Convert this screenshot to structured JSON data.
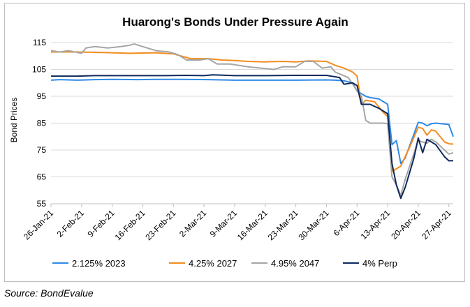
{
  "source": "Source: BondEvalue",
  "chart_data": {
    "type": "line",
    "title": "Huarong's Bonds Under Pressure Again",
    "xlabel": "",
    "ylabel": "Bond Prices",
    "ylim": [
      55,
      115
    ],
    "yticks": [
      55,
      65,
      75,
      85,
      95,
      105,
      115
    ],
    "xlim": [
      "2021-01-26",
      "2021-04-28"
    ],
    "xticks": [
      "26-Jan-21",
      "2-Feb-21",
      "9-Feb-21",
      "16-Feb-21",
      "23-Feb-21",
      "2-Mar-21",
      "9-Mar-21",
      "16-Mar-21",
      "23-Mar-21",
      "30-Mar-21",
      "6-Apr-21",
      "13-Apr-21",
      "20-Apr-21",
      "27-Apr-21"
    ],
    "grid": "horizontal",
    "legend": "bottom",
    "series": [
      {
        "name": "2.125% 2023",
        "color": "#2e8ae6",
        "points": [
          [
            "2021-01-26",
            101.0
          ],
          [
            "2021-01-28",
            101.2
          ],
          [
            "2021-02-01",
            101.0
          ],
          [
            "2021-02-05",
            101.2
          ],
          [
            "2021-02-09",
            101.3
          ],
          [
            "2021-02-15",
            101.2
          ],
          [
            "2021-02-19",
            101.3
          ],
          [
            "2021-02-25",
            101.3
          ],
          [
            "2021-03-03",
            101.2
          ],
          [
            "2021-03-09",
            101.0
          ],
          [
            "2021-03-16",
            101.0
          ],
          [
            "2021-03-23",
            101.0
          ],
          [
            "2021-03-30",
            101.1
          ],
          [
            "2021-04-01",
            101.0
          ],
          [
            "2021-04-03",
            100.8
          ],
          [
            "2021-04-05",
            100.0
          ],
          [
            "2021-04-06",
            97.0
          ],
          [
            "2021-04-07",
            96.0
          ],
          [
            "2021-04-08",
            95.0
          ],
          [
            "2021-04-09",
            94.5
          ],
          [
            "2021-04-11",
            94.0
          ],
          [
            "2021-04-13",
            92.0
          ],
          [
            "2021-04-14",
            77.0
          ],
          [
            "2021-04-15",
            78.5
          ],
          [
            "2021-04-16",
            70.0
          ],
          [
            "2021-04-17",
            72.0
          ],
          [
            "2021-04-20",
            85.3
          ],
          [
            "2021-04-21",
            85.0
          ],
          [
            "2021-04-22",
            84.0
          ],
          [
            "2021-04-23",
            84.8
          ],
          [
            "2021-04-24",
            85.0
          ],
          [
            "2021-04-27",
            84.5
          ],
          [
            "2021-04-28",
            80.0
          ]
        ]
      },
      {
        "name": "4.25% 2027",
        "color": "#f28c1f",
        "points": [
          [
            "2021-01-26",
            111.5
          ],
          [
            "2021-02-01",
            111.5
          ],
          [
            "2021-02-07",
            111.3
          ],
          [
            "2021-02-13",
            111.0
          ],
          [
            "2021-02-19",
            111.2
          ],
          [
            "2021-02-23",
            110.8
          ],
          [
            "2021-02-27",
            109.0
          ],
          [
            "2021-03-03",
            109.0
          ],
          [
            "2021-03-06",
            108.5
          ],
          [
            "2021-03-09",
            108.3
          ],
          [
            "2021-03-12",
            108.0
          ],
          [
            "2021-03-16",
            107.8
          ],
          [
            "2021-03-20",
            108.0
          ],
          [
            "2021-03-23",
            107.8
          ],
          [
            "2021-03-26",
            108.2
          ],
          [
            "2021-03-30",
            108.0
          ],
          [
            "2021-04-01",
            106.5
          ],
          [
            "2021-04-03",
            105.5
          ],
          [
            "2021-04-05",
            104.0
          ],
          [
            "2021-04-06",
            102.5
          ],
          [
            "2021-04-07",
            92.0
          ],
          [
            "2021-04-08",
            93.5
          ],
          [
            "2021-04-10",
            93.0
          ],
          [
            "2021-04-12",
            89.0
          ],
          [
            "2021-04-13",
            87.5
          ],
          [
            "2021-04-14",
            67.0
          ],
          [
            "2021-04-15",
            68.0
          ],
          [
            "2021-04-16",
            69.0
          ],
          [
            "2021-04-18",
            76.0
          ],
          [
            "2021-04-20",
            83.5
          ],
          [
            "2021-04-21",
            83.0
          ],
          [
            "2021-04-22",
            80.5
          ],
          [
            "2021-04-23",
            82.5
          ],
          [
            "2021-04-24",
            82.0
          ],
          [
            "2021-04-26",
            78.0
          ],
          [
            "2021-04-27",
            77.3
          ],
          [
            "2021-04-28",
            77.2
          ]
        ]
      },
      {
        "name": "4.95% 2047",
        "color": "#a6a6a6",
        "points": [
          [
            "2021-01-26",
            112.0
          ],
          [
            "2021-01-28",
            111.5
          ],
          [
            "2021-01-30",
            112.0
          ],
          [
            "2021-02-02",
            111.0
          ],
          [
            "2021-02-03",
            113.0
          ],
          [
            "2021-02-05",
            113.5
          ],
          [
            "2021-02-08",
            113.0
          ],
          [
            "2021-02-11",
            113.5
          ],
          [
            "2021-02-13",
            114.0
          ],
          [
            "2021-02-14",
            114.5
          ],
          [
            "2021-02-16",
            113.5
          ],
          [
            "2021-02-19",
            112.0
          ],
          [
            "2021-02-22",
            111.5
          ],
          [
            "2021-02-24",
            110.5
          ],
          [
            "2021-02-26",
            108.5
          ],
          [
            "2021-03-01",
            108.5
          ],
          [
            "2021-03-03",
            109.0
          ],
          [
            "2021-03-05",
            107.0
          ],
          [
            "2021-03-08",
            107.0
          ],
          [
            "2021-03-10",
            106.5
          ],
          [
            "2021-03-12",
            106.0
          ],
          [
            "2021-03-15",
            105.5
          ],
          [
            "2021-03-18",
            105.0
          ],
          [
            "2021-03-20",
            106.0
          ],
          [
            "2021-03-23",
            106.0
          ],
          [
            "2021-03-25",
            108.0
          ],
          [
            "2021-03-27",
            108.0
          ],
          [
            "2021-03-29",
            105.5
          ],
          [
            "2021-03-31",
            106.0
          ],
          [
            "2021-04-01",
            104.0
          ],
          [
            "2021-04-04",
            102.0
          ],
          [
            "2021-04-06",
            97.0
          ],
          [
            "2021-04-07",
            95.0
          ],
          [
            "2021-04-08",
            86.0
          ],
          [
            "2021-04-09",
            85.0
          ],
          [
            "2021-04-12",
            85.0
          ],
          [
            "2021-04-13",
            84.8
          ],
          [
            "2021-04-14",
            65.0
          ],
          [
            "2021-04-15",
            62.0
          ],
          [
            "2021-04-16",
            58.0
          ],
          [
            "2021-04-17",
            64.0
          ],
          [
            "2021-04-20",
            78.5
          ],
          [
            "2021-04-21",
            78.0
          ],
          [
            "2021-04-22",
            77.5
          ],
          [
            "2021-04-23",
            79.0
          ],
          [
            "2021-04-24",
            78.0
          ],
          [
            "2021-04-27",
            73.5
          ],
          [
            "2021-04-28",
            74.0
          ]
        ]
      },
      {
        "name": "4% Perp",
        "color": "#0e2a5c",
        "points": [
          [
            "2021-01-26",
            102.5
          ],
          [
            "2021-02-01",
            102.5
          ],
          [
            "2021-02-05",
            102.7
          ],
          [
            "2021-02-13",
            102.7
          ],
          [
            "2021-02-21",
            102.7
          ],
          [
            "2021-02-26",
            102.8
          ],
          [
            "2021-03-02",
            102.7
          ],
          [
            "2021-03-04",
            103.0
          ],
          [
            "2021-03-09",
            102.7
          ],
          [
            "2021-03-16",
            102.7
          ],
          [
            "2021-03-23",
            102.8
          ],
          [
            "2021-03-30",
            102.8
          ],
          [
            "2021-04-02",
            102.0
          ],
          [
            "2021-04-03",
            99.5
          ],
          [
            "2021-04-05",
            100.0
          ],
          [
            "2021-04-06",
            99.0
          ],
          [
            "2021-04-07",
            92.0
          ],
          [
            "2021-04-09",
            92.0
          ],
          [
            "2021-04-11",
            90.5
          ],
          [
            "2021-04-13",
            88.5
          ],
          [
            "2021-04-14",
            70.0
          ],
          [
            "2021-04-15",
            62.0
          ],
          [
            "2021-04-16",
            57.0
          ],
          [
            "2021-04-17",
            61.0
          ],
          [
            "2021-04-19",
            72.0
          ],
          [
            "2021-04-20",
            79.5
          ],
          [
            "2021-04-21",
            74.0
          ],
          [
            "2021-04-22",
            79.0
          ],
          [
            "2021-04-23",
            78.0
          ],
          [
            "2021-04-24",
            77.0
          ],
          [
            "2021-04-26",
            72.5
          ],
          [
            "2021-04-27",
            71.0
          ],
          [
            "2021-04-28",
            71.0
          ]
        ]
      }
    ]
  }
}
